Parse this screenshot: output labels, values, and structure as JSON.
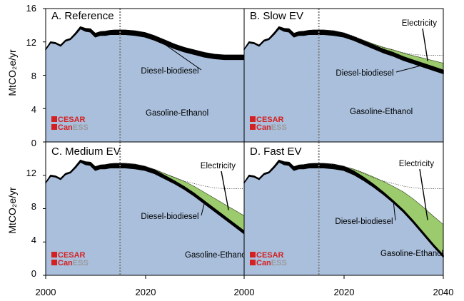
{
  "colors": {
    "gasoline": "#a9bfdc",
    "diesel": "#000000",
    "electricity": "#9ccb6d",
    "reference_line": "#808080",
    "logo_red": "#d42020"
  },
  "axis": {
    "ylabel": "MtCO₂e/yr",
    "yticks": [
      "16",
      "12",
      "8",
      "4",
      "0"
    ],
    "xticks_left": [
      "2000",
      "2020"
    ],
    "xticks_right": [
      "2000",
      "2020",
      "2040"
    ]
  },
  "logo": {
    "line1": "CESAR",
    "line2_a": "Can",
    "line2_b": "ESS"
  },
  "chart_data": [
    {
      "type": "area",
      "title": "A. Reference",
      "ylim": [
        0,
        16
      ],
      "xlim": [
        2000,
        2040
      ],
      "vline": 2015,
      "x": [
        2000,
        2001,
        2002,
        2003,
        2004,
        2005,
        2006,
        2007,
        2008,
        2009,
        2010,
        2011,
        2012,
        2013,
        2014,
        2015,
        2016,
        2018,
        2020,
        2022,
        2024,
        2026,
        2028,
        2030,
        2032,
        2034,
        2036,
        2038,
        2040
      ],
      "series": [
        {
          "name": "Gasoline-Ethanol",
          "values": [
            11.1,
            11.9,
            11.8,
            11.5,
            12.1,
            12.3,
            12.9,
            13.6,
            13.3,
            13.2,
            12.6,
            12.8,
            12.8,
            12.9,
            12.9,
            12.9,
            12.9,
            12.8,
            12.6,
            12.2,
            11.7,
            11.2,
            10.8,
            10.5,
            10.2,
            10.0,
            9.9,
            9.9,
            9.9
          ]
        },
        {
          "name": "Diesel-biodiesel",
          "values": [
            0.0,
            0.1,
            0.1,
            0.1,
            0.1,
            0.1,
            0.15,
            0.2,
            0.3,
            0.35,
            0.4,
            0.4,
            0.45,
            0.45,
            0.5,
            0.5,
            0.5,
            0.5,
            0.5,
            0.5,
            0.5,
            0.5,
            0.5,
            0.5,
            0.5,
            0.5,
            0.5,
            0.5,
            0.5
          ]
        },
        {
          "name": "Electricity",
          "values": [
            0,
            0,
            0,
            0,
            0,
            0,
            0,
            0,
            0,
            0,
            0,
            0,
            0,
            0,
            0,
            0,
            0,
            0,
            0,
            0,
            0,
            0,
            0,
            0,
            0,
            0,
            0,
            0,
            0
          ]
        }
      ],
      "labels": {
        "gasoline": "Gasoline-Ethanol",
        "diesel": "Diesel-biodiesel",
        "electricity": ""
      }
    },
    {
      "type": "area",
      "title": "B. Slow EV",
      "ylim": [
        0,
        16
      ],
      "xlim": [
        2000,
        2040
      ],
      "vline": 2015,
      "x": [
        2000,
        2001,
        2002,
        2003,
        2004,
        2005,
        2006,
        2007,
        2008,
        2009,
        2010,
        2011,
        2012,
        2013,
        2014,
        2015,
        2016,
        2018,
        2020,
        2022,
        2024,
        2026,
        2028,
        2030,
        2032,
        2034,
        2036,
        2038,
        2040
      ],
      "series": [
        {
          "name": "Gasoline-Ethanol",
          "values": [
            11.1,
            11.9,
            11.8,
            11.5,
            12.1,
            12.3,
            12.9,
            13.6,
            13.3,
            13.2,
            12.6,
            12.8,
            12.8,
            12.9,
            12.9,
            12.9,
            12.9,
            12.8,
            12.6,
            12.2,
            11.7,
            11.2,
            10.7,
            10.3,
            9.8,
            9.4,
            9.0,
            8.6,
            8.2
          ]
        },
        {
          "name": "Diesel-biodiesel",
          "values": [
            0.0,
            0.1,
            0.1,
            0.1,
            0.1,
            0.1,
            0.15,
            0.2,
            0.3,
            0.35,
            0.4,
            0.4,
            0.45,
            0.45,
            0.5,
            0.5,
            0.5,
            0.5,
            0.45,
            0.4,
            0.4,
            0.4,
            0.4,
            0.4,
            0.4,
            0.4,
            0.4,
            0.4,
            0.4
          ]
        },
        {
          "name": "Electricity",
          "values": [
            0,
            0,
            0,
            0,
            0,
            0,
            0,
            0,
            0,
            0,
            0,
            0,
            0,
            0,
            0,
            0,
            0,
            0,
            0.0,
            0.05,
            0.1,
            0.15,
            0.25,
            0.35,
            0.45,
            0.55,
            0.65,
            0.75,
            0.85
          ]
        }
      ],
      "reference": [
        12.9,
        12.8,
        12.6,
        12.2,
        11.7,
        11.2,
        10.8,
        10.5,
        10.2,
        10.0,
        9.9,
        9.9,
        9.9
      ],
      "reference_x": [
        2016,
        2018,
        2020,
        2022,
        2024,
        2026,
        2028,
        2030,
        2032,
        2034,
        2036,
        2038,
        2040
      ],
      "labels": {
        "gasoline": "Gasoline-Ethanol",
        "diesel": "Diesel-biodiesel",
        "electricity": "Electricity"
      }
    },
    {
      "type": "area",
      "title": "C. Medium EV",
      "ylim": [
        0,
        16
      ],
      "xlim": [
        2000,
        2040
      ],
      "vline": 2015,
      "x": [
        2000,
        2001,
        2002,
        2003,
        2004,
        2005,
        2006,
        2007,
        2008,
        2009,
        2010,
        2011,
        2012,
        2013,
        2014,
        2015,
        2016,
        2018,
        2020,
        2022,
        2024,
        2026,
        2028,
        2030,
        2032,
        2034,
        2036,
        2038,
        2040
      ],
      "series": [
        {
          "name": "Gasoline-Ethanol",
          "values": [
            11.1,
            11.9,
            11.8,
            11.5,
            12.1,
            12.3,
            12.9,
            13.6,
            13.3,
            13.2,
            12.6,
            12.8,
            12.8,
            12.9,
            12.9,
            12.9,
            12.9,
            12.8,
            12.6,
            12.2,
            11.6,
            11.0,
            10.3,
            9.5,
            8.6,
            7.7,
            6.8,
            5.9,
            5.0
          ]
        },
        {
          "name": "Diesel-biodiesel",
          "values": [
            0.0,
            0.1,
            0.1,
            0.1,
            0.1,
            0.1,
            0.15,
            0.2,
            0.3,
            0.35,
            0.4,
            0.4,
            0.45,
            0.45,
            0.5,
            0.5,
            0.5,
            0.5,
            0.45,
            0.4,
            0.35,
            0.3,
            0.3,
            0.3,
            0.3,
            0.3,
            0.3,
            0.3,
            0.3
          ]
        },
        {
          "name": "Electricity",
          "values": [
            0,
            0,
            0,
            0,
            0,
            0,
            0,
            0,
            0,
            0,
            0,
            0,
            0,
            0,
            0,
            0,
            0,
            0,
            0.0,
            0.1,
            0.25,
            0.45,
            0.65,
            0.85,
            1.05,
            1.25,
            1.45,
            1.65,
            1.85
          ]
        }
      ],
      "reference": [
        12.9,
        12.8,
        12.6,
        12.2,
        11.7,
        11.2,
        10.8,
        10.5,
        10.2,
        10.0,
        9.9,
        9.9,
        9.9
      ],
      "reference_x": [
        2016,
        2018,
        2020,
        2022,
        2024,
        2026,
        2028,
        2030,
        2032,
        2034,
        2036,
        2038,
        2040
      ],
      "labels": {
        "gasoline": "Gasoline-Ethanol",
        "diesel": "Diesel-biodiesel",
        "electricity": "Electricity"
      }
    },
    {
      "type": "area",
      "title": "D. Fast EV",
      "ylim": [
        0,
        16
      ],
      "xlim": [
        2000,
        2040
      ],
      "vline": 2015,
      "x": [
        2000,
        2001,
        2002,
        2003,
        2004,
        2005,
        2006,
        2007,
        2008,
        2009,
        2010,
        2011,
        2012,
        2013,
        2014,
        2015,
        2016,
        2018,
        2020,
        2022,
        2024,
        2026,
        2028,
        2030,
        2032,
        2034,
        2036,
        2038,
        2040
      ],
      "series": [
        {
          "name": "Gasoline-Ethanol",
          "values": [
            11.1,
            11.9,
            11.8,
            11.5,
            12.1,
            12.3,
            12.9,
            13.6,
            13.3,
            13.2,
            12.6,
            12.8,
            12.8,
            12.9,
            12.9,
            12.9,
            12.9,
            12.8,
            12.6,
            12.1,
            11.4,
            10.6,
            9.7,
            8.7,
            7.6,
            6.3,
            4.9,
            3.5,
            2.2
          ]
        },
        {
          "name": "Diesel-biodiesel",
          "values": [
            0.0,
            0.1,
            0.1,
            0.1,
            0.1,
            0.1,
            0.15,
            0.2,
            0.3,
            0.35,
            0.4,
            0.4,
            0.45,
            0.45,
            0.5,
            0.5,
            0.5,
            0.5,
            0.45,
            0.4,
            0.35,
            0.3,
            0.25,
            0.2,
            0.2,
            0.2,
            0.2,
            0.2,
            0.2
          ]
        },
        {
          "name": "Electricity",
          "values": [
            0,
            0,
            0,
            0,
            0,
            0,
            0,
            0,
            0,
            0,
            0,
            0,
            0,
            0,
            0,
            0,
            0,
            0,
            0.0,
            0.25,
            0.55,
            0.9,
            1.3,
            1.75,
            2.2,
            2.65,
            3.05,
            3.4,
            3.7
          ]
        }
      ],
      "reference": [
        12.9,
        12.8,
        12.6,
        12.2,
        11.7,
        11.2,
        10.8,
        10.5,
        10.2,
        10.0,
        9.9,
        9.9,
        9.9
      ],
      "reference_x": [
        2016,
        2018,
        2020,
        2022,
        2024,
        2026,
        2028,
        2030,
        2032,
        2034,
        2036,
        2038,
        2040
      ],
      "labels": {
        "gasoline": "Gasoline-Ethanol",
        "diesel": "Diesel-biodiesel",
        "electricity": "Electricity"
      }
    }
  ]
}
